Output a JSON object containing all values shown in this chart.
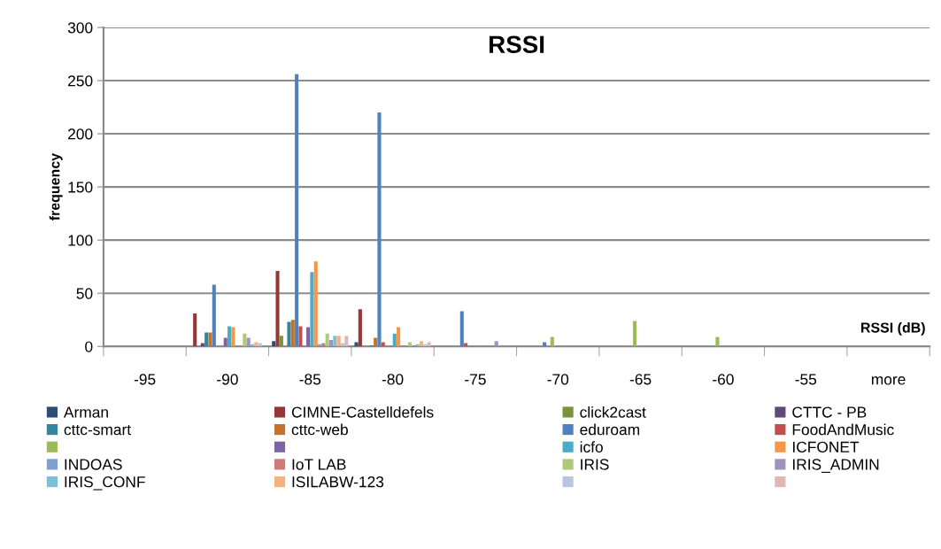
{
  "chart_data": {
    "type": "bar",
    "title": "RSSI",
    "xlabel": "RSSI (dB)",
    "ylabel": "frequency",
    "categories": [
      "-95",
      "-90",
      "-85",
      "-80",
      "-75",
      "-70",
      "-65",
      "-60",
      "-55",
      "more"
    ],
    "ylim": [
      0,
      300
    ],
    "yticks": [
      0,
      50,
      100,
      150,
      200,
      250,
      300
    ],
    "grid": "y",
    "legend": "bottom",
    "series": [
      {
        "name": "Arman",
        "color": "#2c4d75",
        "values": [
          0,
          0,
          5,
          4,
          0,
          0,
          0,
          0,
          0,
          0
        ]
      },
      {
        "name": "CIMNE-Castelldefels",
        "color": "#953735",
        "values": [
          0,
          31,
          71,
          35,
          0,
          0,
          0,
          0,
          0,
          0
        ]
      },
      {
        "name": "click2cast",
        "color": "#77933c",
        "values": [
          0,
          0,
          10,
          0,
          0,
          0,
          0,
          0,
          0,
          0
        ]
      },
      {
        "name": "CTTC - PB",
        "color": "#5f497a",
        "values": [
          0,
          3,
          0,
          0,
          0,
          0,
          0,
          0,
          0,
          0
        ]
      },
      {
        "name": "cttc-smart",
        "color": "#31859c",
        "values": [
          0,
          13,
          23,
          1,
          0,
          0,
          0,
          0,
          0,
          0
        ]
      },
      {
        "name": "cttc-web",
        "color": "#c3732e",
        "values": [
          0,
          13,
          25,
          8,
          0,
          0,
          0,
          0,
          0,
          0
        ]
      },
      {
        "name": "eduroam",
        "color": "#4f81bd",
        "values": [
          0,
          58,
          256,
          220,
          33,
          4,
          0,
          0,
          0,
          0
        ]
      },
      {
        "name": "FoodAndMusic",
        "color": "#c0504d",
        "values": [
          0,
          0,
          19,
          4,
          3,
          0,
          0,
          0,
          0,
          0
        ]
      },
      {
        "name": null,
        "color": "#9bbb59",
        "values": [
          0,
          0,
          0,
          0,
          0,
          9,
          24,
          9,
          0,
          0
        ]
      },
      {
        "name": null,
        "color": "#8064a2",
        "values": [
          0,
          8,
          18,
          0,
          0,
          0,
          0,
          0,
          0,
          0
        ]
      },
      {
        "name": "icfo",
        "color": "#4bacc6",
        "values": [
          0,
          19,
          70,
          12,
          0,
          0,
          0,
          0,
          0,
          0
        ]
      },
      {
        "name": "ICFONET",
        "color": "#f79646",
        "values": [
          0,
          18,
          80,
          18,
          0,
          0,
          0,
          0,
          0,
          0
        ]
      },
      {
        "name": "INDOAS",
        "color": "#7f9fcf",
        "values": [
          0,
          0,
          2,
          0,
          0,
          0,
          0,
          0,
          0,
          0
        ]
      },
      {
        "name": "IoT LAB",
        "color": "#cd7c7a",
        "values": [
          0,
          0,
          3,
          0,
          0,
          0,
          0,
          0,
          0,
          0
        ]
      },
      {
        "name": "IRIS",
        "color": "#afc97a",
        "values": [
          0,
          12,
          12,
          4,
          0,
          0,
          0,
          0,
          0,
          0
        ]
      },
      {
        "name": "IRIS_ADMIN",
        "color": "#a092bb",
        "values": [
          0,
          8,
          6,
          0,
          5,
          0,
          0,
          0,
          0,
          0
        ]
      },
      {
        "name": "IRIS_CONF",
        "color": "#7dbfd6",
        "values": [
          0,
          2,
          10,
          2,
          0,
          0,
          0,
          0,
          0,
          0
        ]
      },
      {
        "name": "ISILABW-123",
        "color": "#fab07b",
        "values": [
          0,
          4,
          10,
          5,
          0,
          0,
          0,
          0,
          0,
          0
        ]
      },
      {
        "name": null,
        "color": "#b7c5e0",
        "values": [
          0,
          3,
          3,
          2,
          0,
          0,
          0,
          0,
          0,
          0
        ]
      },
      {
        "name": null,
        "color": "#e0b7b6",
        "values": [
          0,
          null,
          10,
          4,
          0,
          0,
          0,
          0,
          0,
          0
        ]
      }
    ]
  }
}
